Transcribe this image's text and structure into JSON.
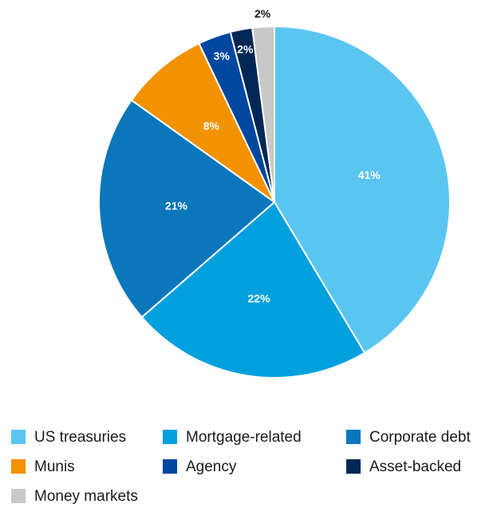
{
  "chart_data": {
    "type": "pie",
    "categories": [
      "US treasuries",
      "Mortgage-related",
      "Corporate debt",
      "Munis",
      "Agency",
      "Asset-backed",
      "Money markets"
    ],
    "values": [
      41,
      22,
      21,
      8,
      3,
      2,
      2
    ],
    "value_labels": [
      "41%",
      "22%",
      "21%",
      "8%",
      "3%",
      "2%",
      "2%"
    ],
    "colors": [
      "#5bc5f2",
      "#00a0df",
      "#0a76bc",
      "#f39200",
      "#0047a0",
      "#002855",
      "#c8c8c8"
    ],
    "legend": "bottom"
  }
}
